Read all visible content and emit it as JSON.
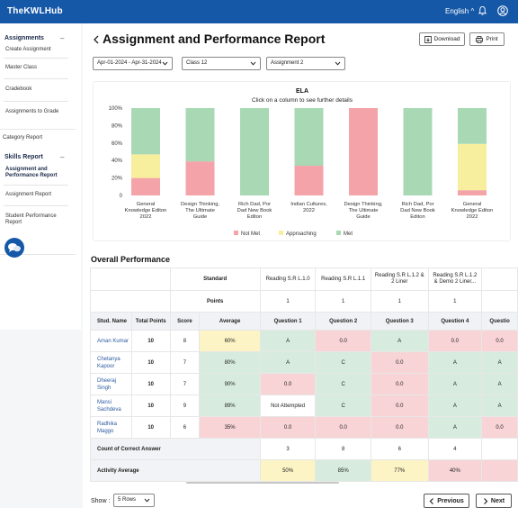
{
  "header": {
    "logo": "TheKWLHub",
    "language": "English",
    "language_chevron": "^"
  },
  "sidebar": {
    "assignments_title": "Assignments",
    "minus": "–",
    "assignments_items": [
      "Create Assignment",
      "Master Class",
      "Cradebook",
      "Assignments to Grade"
    ],
    "category_report": "Category Report",
    "skills_title": "Skills Report",
    "skills_items": [
      "Assignment and Performance Report",
      "Assignment Report",
      "Student Performance Report"
    ]
  },
  "page": {
    "title": "Assignment and Performance Report",
    "download": "Download",
    "print": "Print"
  },
  "filters": {
    "date_range": "Apr-01-2024 - Apr-31-2024",
    "class": "Class 12",
    "assignment": "Assignment 2"
  },
  "chart_data": {
    "type": "bar",
    "title": "ELA",
    "subtitle": "Click on a column to see further details",
    "stacked": true,
    "ylim": [
      0,
      100
    ],
    "yticks": [
      "100%",
      "80%",
      "60%",
      "40%",
      "20%",
      "0"
    ],
    "categories": [
      "General Knowledge Editon 2022",
      "Design Thinking, The Ultimate Guide",
      "Rich Dad, Por Dad New Book Editon",
      "Indian Cultures, 2022",
      "Design Thinking, The Ultimate Guide",
      "Rich Dad, Por Dad New Book Editon",
      "General Knowledge Editon 2022"
    ],
    "series": [
      {
        "name": "Not Met",
        "color": "#f4a3a8",
        "values": [
          20,
          39,
          0,
          34,
          100,
          0,
          6
        ]
      },
      {
        "name": "Approaching",
        "color": "#f8ef9e",
        "values": [
          27,
          0,
          0,
          0,
          0,
          0,
          53
        ]
      },
      {
        "name": "Met",
        "color": "#a9d8b5",
        "values": [
          53,
          61,
          100,
          66,
          0,
          100,
          41
        ]
      }
    ],
    "legend": "bottom"
  },
  "overall": {
    "title": "Overall Performance",
    "standard_label": "Standard",
    "points_label": "Points",
    "standards": [
      "Reading S.R L.1.0",
      "Reading S.R L.1.1",
      "Reading S.R L.1.2 & 2 Liner",
      "Reading S.R L.1.2 & Demo 2 Liner...",
      ""
    ],
    "points": [
      "1",
      "1",
      "1",
      "1",
      ""
    ],
    "col_headers": [
      "Stud. Name",
      "Total Points",
      "Score",
      "Average",
      "Question 1",
      "Question 2",
      "Question 3",
      "Question 4",
      "Questio"
    ],
    "rows": [
      {
        "name": "Aman Kumar",
        "total": "10",
        "score": "8",
        "avg": "60%",
        "avg_s": "ap",
        "q": [
          [
            "A",
            "met"
          ],
          [
            "0.0",
            "nm"
          ],
          [
            "A",
            "met"
          ],
          [
            "0.0",
            "nm"
          ],
          [
            "0.0",
            "nm"
          ]
        ]
      },
      {
        "name": "Chetanya Kapoor",
        "total": "10",
        "score": "7",
        "avg": "80%",
        "avg_s": "met",
        "q": [
          [
            "A",
            "met"
          ],
          [
            "C",
            "met"
          ],
          [
            "0.0",
            "nm"
          ],
          [
            "A",
            "met"
          ],
          [
            "A",
            "met"
          ]
        ]
      },
      {
        "name": "Dheeraj Singh",
        "total": "10",
        "score": "7",
        "avg": "90%",
        "avg_s": "met",
        "q": [
          [
            "0.0",
            "nm"
          ],
          [
            "C",
            "met"
          ],
          [
            "0.0",
            "nm"
          ],
          [
            "A",
            "met"
          ],
          [
            "A",
            "met"
          ]
        ]
      },
      {
        "name": "Mansi Sachdeva",
        "total": "10",
        "score": "9",
        "avg": "89%",
        "avg_s": "met",
        "q": [
          [
            "Not Attempted",
            "na"
          ],
          [
            "C",
            "met"
          ],
          [
            "0.0",
            "nm"
          ],
          [
            "A",
            "met"
          ],
          [
            "A",
            "met"
          ]
        ]
      },
      {
        "name": "Radhika Maggo",
        "total": "10",
        "score": "6",
        "avg": "35%",
        "avg_s": "nm",
        "q": [
          [
            "0.0",
            "nm"
          ],
          [
            "0.0",
            "nm"
          ],
          [
            "0.0",
            "nm"
          ],
          [
            "A",
            "met"
          ],
          [
            "0.0",
            "nm"
          ]
        ]
      }
    ],
    "count_label": "Count of Correct Answer",
    "counts": [
      "3",
      "8",
      "6",
      "4",
      ""
    ],
    "activity_label": "Activity Average",
    "activity": [
      [
        "50%",
        "ap"
      ],
      [
        "85%",
        "met"
      ],
      [
        "77%",
        "ap"
      ],
      [
        "40%",
        "nm"
      ],
      [
        "",
        "nm"
      ]
    ]
  },
  "pager": {
    "show_label": "Show :",
    "rows": "5 Rows",
    "previous": "Previous",
    "next": "Next"
  }
}
